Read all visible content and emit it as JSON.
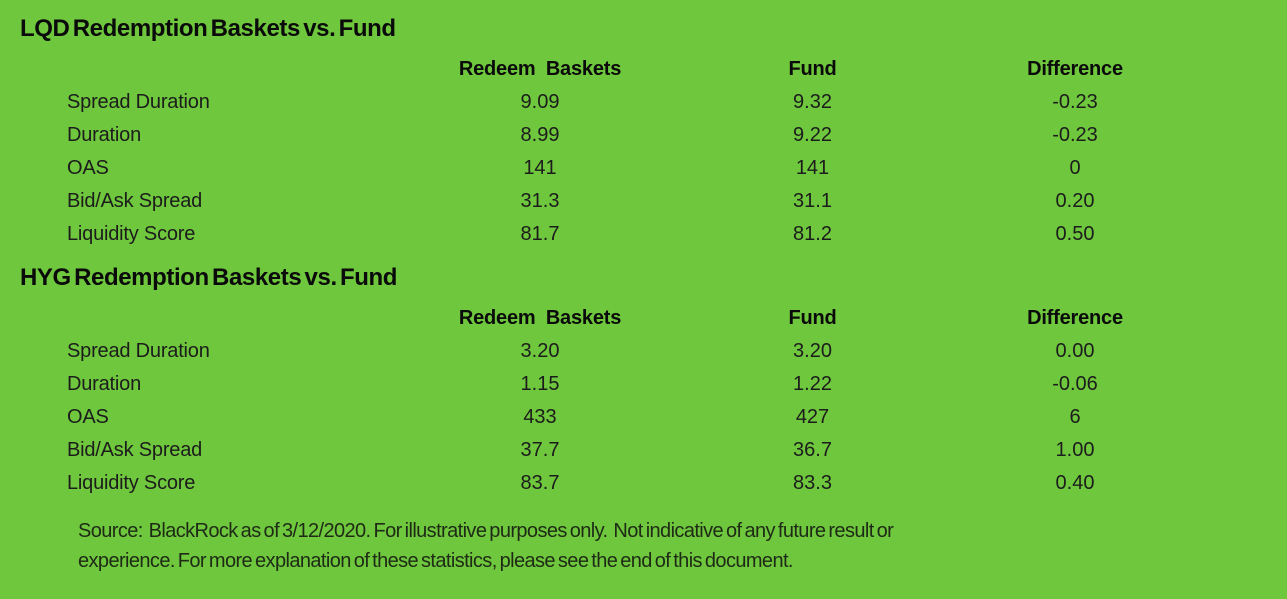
{
  "theme": {
    "background": "#6EC73C",
    "title_color": "#0A0A0A",
    "text_color": "#1C1C1C"
  },
  "tables": [
    {
      "id": "lqd",
      "title": "LQD Redemption Baskets vs. Fund",
      "columns": [
        "Redeem Baskets",
        "Fund",
        "Difference"
      ],
      "rows": [
        {
          "label": "Spread Duration",
          "redeem_baskets": "9.09",
          "fund": "9.32",
          "difference": "-0.23"
        },
        {
          "label": "Duration",
          "redeem_baskets": "8.99",
          "fund": "9.22",
          "difference": "-0.23"
        },
        {
          "label": "OAS",
          "redeem_baskets": "141",
          "fund": "141",
          "difference": "0"
        },
        {
          "label": "Bid/Ask Spread",
          "redeem_baskets": "31.3",
          "fund": "31.1",
          "difference": "0.20"
        },
        {
          "label": "Liquidity Score",
          "redeem_baskets": "81.7",
          "fund": "81.2",
          "difference": "0.50"
        }
      ]
    },
    {
      "id": "hyg",
      "title": "HYG Redemption Baskets vs. Fund",
      "columns": [
        "Redeem Baskets",
        "Fund",
        "Difference"
      ],
      "rows": [
        {
          "label": "Spread Duration",
          "redeem_baskets": "3.20",
          "fund": "3.20",
          "difference": "0.00"
        },
        {
          "label": "Duration",
          "redeem_baskets": "1.15",
          "fund": "1.22",
          "difference": "-0.06"
        },
        {
          "label": "OAS",
          "redeem_baskets": "433",
          "fund": "427",
          "difference": "6"
        },
        {
          "label": "Bid/Ask Spread",
          "redeem_baskets": "37.7",
          "fund": "36.7",
          "difference": "1.00"
        },
        {
          "label": "Liquidity Score",
          "redeem_baskets": "83.7",
          "fund": "83.3",
          "difference": "0.40"
        }
      ]
    }
  ],
  "footnote": {
    "line1": "Source:  BlackRock as of 3/12/2020. For illustrative purposes only.  Not indicative of any future result or",
    "line2": "experience. For more explanation of these statistics, please see the end of this document."
  }
}
